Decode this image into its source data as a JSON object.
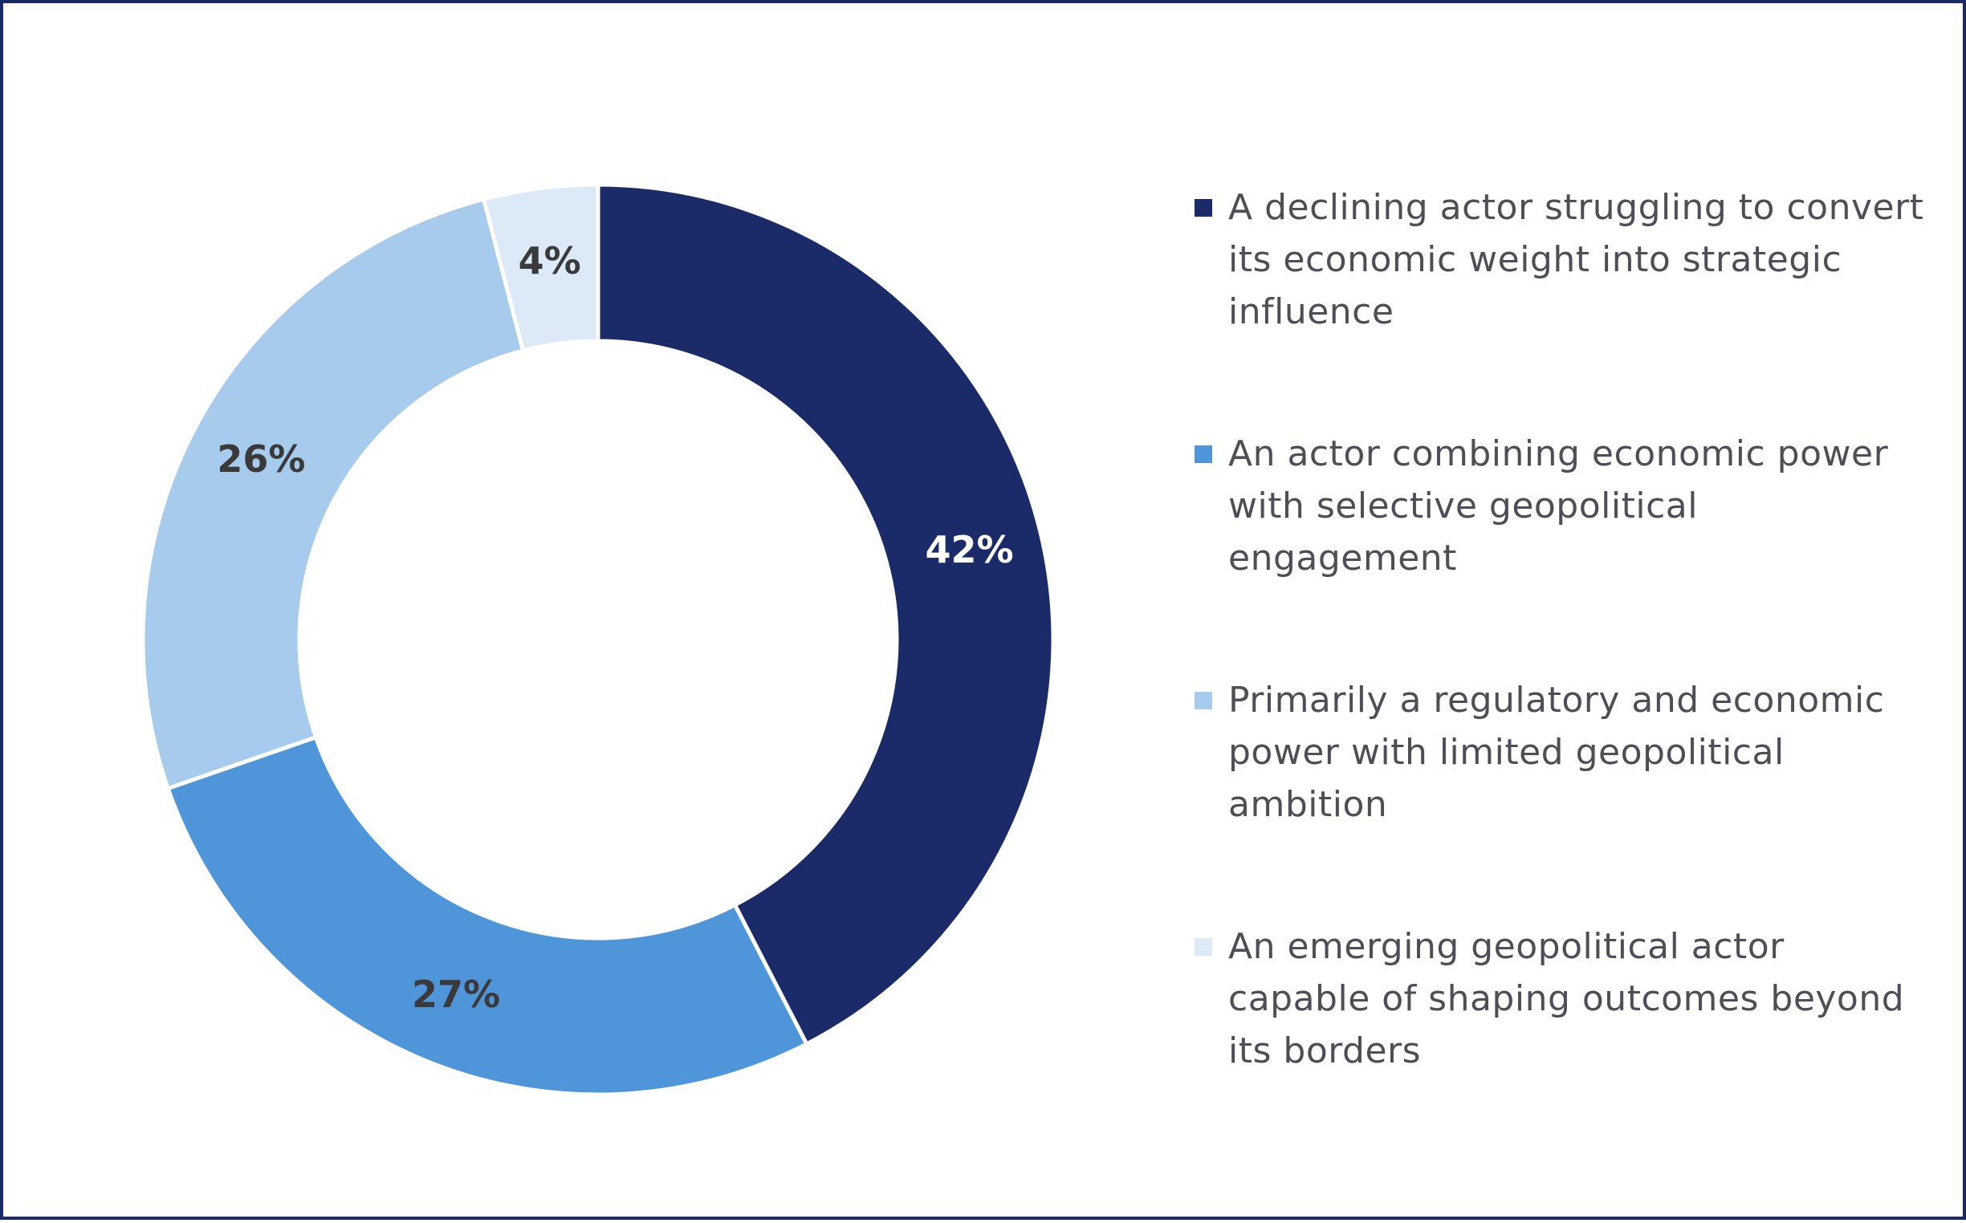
{
  "chart_data": {
    "type": "pie",
    "donut": true,
    "title": "",
    "legend_position": "right",
    "categories": [
      "A declining actor struggling to convert its economic weight into strategic influence",
      "An actor combining economic power with selective geopolitical engagement",
      "Primarily a regulatory and economic power with limited geopolitical ambition",
      "An emerging geopolitical actor capable of shaping outcomes beyond its borders"
    ],
    "values": [
      42,
      27,
      26,
      4
    ],
    "data_labels": [
      "42%",
      "27%",
      "26%",
      "4%"
    ],
    "colors": [
      "#1b2a69",
      "#4f95d9",
      "#a7cbed",
      "#dce9f7"
    ],
    "label_colors": [
      "#ffffff",
      "#3a3a3a",
      "#3a3a3a",
      "#3a3a3a"
    ]
  }
}
